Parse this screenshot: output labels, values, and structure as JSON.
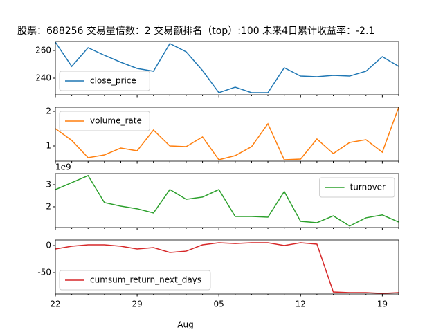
{
  "chart_data": {
    "type": "line",
    "title": "股票：688256  交易量倍数：2 交易额排名（top）:100 未来4日累计收益率：-2.1",
    "categories": [
      "22",
      null,
      null,
      null,
      null,
      "29",
      null,
      null,
      null,
      null,
      "05",
      null,
      null,
      null,
      null,
      "12",
      null,
      null,
      null,
      null,
      "19",
      null
    ],
    "xlabel": "Aug",
    "subplots": [
      {
        "series": [
          {
            "name": "close_price",
            "color": "#1f77b4",
            "values": [
              266,
              248.5,
              262,
              256.5,
              251.5,
              247,
              245,
              265,
              259,
              245.5,
              229.5,
              233.5,
              229.5,
              229.5,
              247.5,
              241.5,
              241,
              242,
              241.5,
              245,
              255.5,
              248.5
            ]
          }
        ],
        "ylim": [
          228,
          266.5
        ],
        "yticks": [
          240,
          260
        ],
        "legend": "lower left"
      },
      {
        "series": [
          {
            "name": "volume_rate",
            "color": "#ff7f0e",
            "values": [
              1.5,
              1.16,
              0.66,
              0.74,
              0.94,
              0.86,
              1.46,
              1.0,
              0.98,
              1.26,
              0.6,
              0.72,
              0.98,
              1.64,
              0.6,
              0.62,
              1.2,
              0.78,
              1.1,
              1.18,
              0.82,
              2.12
            ]
          }
        ],
        "ylim": [
          0.56,
          2.12
        ],
        "yticks": [
          1,
          2
        ],
        "legend": "upper left"
      },
      {
        "series": [
          {
            "name": "turnover",
            "color": "#2ca02c",
            "values": [
              2780000000,
              3090000000,
              3410000000,
              2190000000,
              2030000000,
              1910000000,
              1720000000,
              2780000000,
              2340000000,
              2440000000,
              2780000000,
              1560000000,
              1560000000,
              1530000000,
              2690000000,
              1340000000,
              1280000000,
              1590000000,
              1130000000,
              1500000000,
              1630000000,
              1310000000
            ]
          }
        ],
        "ylim": [
          1060000000,
          3500000000
        ],
        "yticks": [
          {
            "value": 2000000000,
            "label": "2"
          },
          {
            "value": 3000000000,
            "label": "3"
          }
        ],
        "offset_text": "1e9",
        "legend": "upper right"
      },
      {
        "series": [
          {
            "name": "cumsum_return_next_days",
            "color": "#d62728",
            "values": [
              -6.4,
              -1.3,
              1.3,
              1.3,
              -1.3,
              -6.4,
              -3.8,
              -12.8,
              -10.3,
              1.3,
              5.1,
              3.8,
              5.1,
              5.1,
              0,
              5.1,
              2.6,
              -85.9,
              -87.2,
              -87.2,
              -88.5,
              -87.2
            ]
          }
        ],
        "ylim": [
          -89.7,
          10.3
        ],
        "yticks": [
          -50,
          0
        ],
        "legend": "lower left"
      }
    ]
  }
}
